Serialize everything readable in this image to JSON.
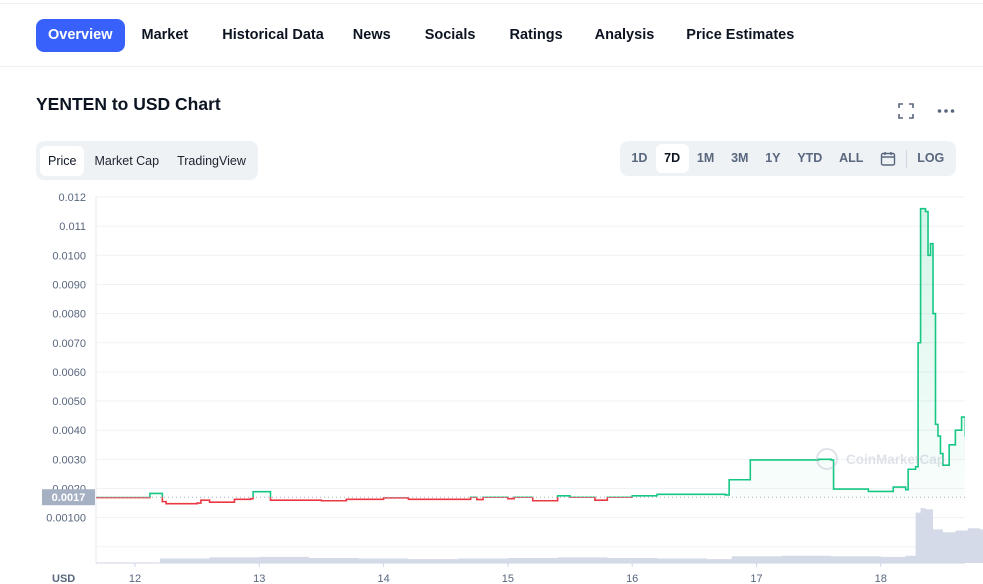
{
  "nav": {
    "tabs": [
      "Overview",
      "Market",
      "Historical Data",
      "News",
      "Socials",
      "Ratings",
      "Analysis",
      "Price Estimates"
    ],
    "active": "Overview"
  },
  "chart_header": {
    "title": "YENTEN to USD Chart",
    "fullscreen_icon": "fullscreen-icon",
    "more_icon": "more-icon"
  },
  "chart_type_tabs": {
    "items": [
      "Price",
      "Market Cap",
      "TradingView"
    ],
    "active": "Price"
  },
  "range_tabs": {
    "items": [
      "1D",
      "7D",
      "1M",
      "3M",
      "1Y",
      "YTD",
      "ALL"
    ],
    "active": "7D",
    "calendar_icon": "calendar-icon",
    "log_label": "LOG"
  },
  "colors": {
    "accent": "#3861fb",
    "up": "#16c784",
    "down": "#ea3943",
    "grid": "#eff2f5",
    "volume": "#cfd6e4"
  },
  "chart_data": {
    "type": "line",
    "y_ticks": [
      "0.012",
      "0.011",
      "0.0100",
      "0.0090",
      "0.0080",
      "0.0070",
      "0.0060",
      "0.0050",
      "0.0040",
      "0.0030",
      "0.0020",
      "0.00100"
    ],
    "x_ticks": [
      "12",
      "13",
      "14",
      "15",
      "16",
      "17",
      "18"
    ],
    "y_unit": "USD",
    "ylim": [
      0,
      0.012
    ],
    "current_price_label": "0.0017",
    "reference_price": 0.0017,
    "watermark": "CoinMarketCap",
    "series": [
      {
        "x": [
          11.65,
          12.1,
          12.12,
          12.2,
          12.22,
          12.25,
          12.5,
          12.53,
          12.6,
          12.8,
          12.93,
          12.95,
          13.07,
          13.09,
          13.5,
          13.7,
          14.0,
          14.2,
          14.5,
          14.7,
          14.75,
          14.8,
          15.0,
          15.05,
          15.2,
          15.4,
          15.5,
          15.7,
          15.8,
          16.0,
          16.2,
          16.5,
          16.75,
          16.78,
          16.95,
          17.5,
          17.6,
          17.62,
          17.9,
          18.1,
          18.2,
          18.22,
          18.28,
          18.3,
          18.32,
          18.36,
          18.38,
          18.4,
          18.42,
          18.44,
          18.46,
          18.48,
          18.5,
          18.55,
          18.6,
          18.65,
          18.68,
          18.72,
          18.76,
          18.8,
          18.84,
          18.88,
          18.92,
          18.96,
          18.99
        ],
        "y": [
          0.00169,
          0.00169,
          0.00183,
          0.00183,
          0.00155,
          0.00148,
          0.0015,
          0.0016,
          0.00153,
          0.00163,
          0.00165,
          0.00189,
          0.00189,
          0.0016,
          0.00158,
          0.00163,
          0.00168,
          0.00163,
          0.00163,
          0.0017,
          0.00162,
          0.0017,
          0.00165,
          0.0017,
          0.00158,
          0.00175,
          0.0017,
          0.0016,
          0.0017,
          0.00175,
          0.0018,
          0.0018,
          0.00178,
          0.0023,
          0.00298,
          0.003,
          0.00298,
          0.00198,
          0.0019,
          0.00205,
          0.00196,
          0.00266,
          0.00275,
          0.007,
          0.0116,
          0.0115,
          0.01,
          0.0104,
          0.008,
          0.0042,
          0.0038,
          0.0032,
          0.0028,
          0.0035,
          0.004,
          0.00445,
          0.0038,
          0.00445,
          0.0033,
          0.0032,
          0.0035,
          0.0035,
          0.00338,
          0.00338,
          0.00338
        ]
      }
    ],
    "volume": {
      "x": [
        12.2,
        12.6,
        13.0,
        13.4,
        13.8,
        14.2,
        14.6,
        15.0,
        15.4,
        15.8,
        16.2,
        16.6,
        16.8,
        17.2,
        17.6,
        18.0,
        18.2,
        18.28,
        18.32,
        18.36,
        18.42,
        18.5,
        18.6,
        18.7,
        18.8,
        18.9,
        18.99
      ],
      "y": [
        0.08,
        0.1,
        0.11,
        0.09,
        0.08,
        0.07,
        0.08,
        0.09,
        0.1,
        0.09,
        0.08,
        0.07,
        0.12,
        0.13,
        0.12,
        0.11,
        0.13,
        0.9,
        0.98,
        0.96,
        0.6,
        0.55,
        0.58,
        0.62,
        0.6,
        0.63,
        0.65
      ]
    }
  }
}
